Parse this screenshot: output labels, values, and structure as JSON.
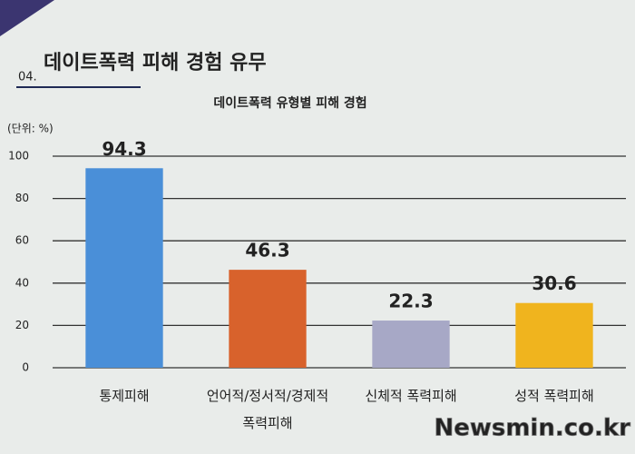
{
  "slide": {
    "number": "04.",
    "heading": "데이트폭력 피해 경험 유무"
  },
  "watermark": "Newsmin.co.kr",
  "chart_data": {
    "type": "bar",
    "title": "데이트폭력 유형별 피해 경험",
    "unit": "(단위: %)",
    "categories": [
      "통제피해",
      "언어적/정서적/경제적 폭력피해",
      "신체적 폭력피해",
      "성적 폭력피해"
    ],
    "values": [
      94.3,
      46.3,
      22.3,
      30.6
    ],
    "colors": [
      "#4a8fd8",
      "#d8622c",
      "#a7a8c6",
      "#f0b41e"
    ],
    "ylim": [
      0,
      100
    ],
    "yticks": [
      0,
      20,
      40,
      60,
      80,
      100
    ],
    "grid": true
  }
}
